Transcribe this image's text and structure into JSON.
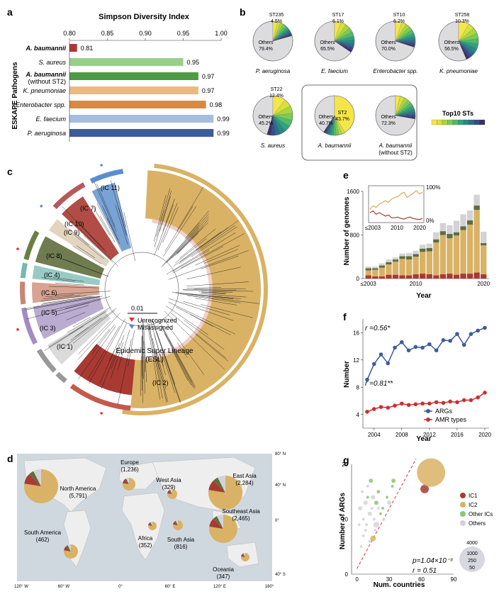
{
  "colors": {
    "ic2": "#d9b266",
    "ic1": "#a83a32",
    "ic_other": "#8fc477",
    "others": "#d3d3d7",
    "args": "#3e5b9b",
    "amr": "#c8312e",
    "ocean": "#cfd8df",
    "land": "#eeeeee"
  },
  "panels": {
    "a": "a",
    "b": "b",
    "c": "c",
    "d": "d",
    "e": "e",
    "f": "f",
    "g": "g"
  },
  "panel_a": {
    "title": "Simpson Diversity Index",
    "ylabel": "ESKAPE Pathogens",
    "ticks": [
      "0.80",
      "0.85",
      "0.90",
      "0.95",
      "1.00"
    ],
    "bars": [
      {
        "name": "A. baumannii",
        "sub": "",
        "value": 0.81,
        "label": "0.81",
        "color": "#a83a32",
        "bold": true
      },
      {
        "name": "S. aureus",
        "sub": "",
        "value": 0.95,
        "label": "0.95",
        "color": "#98cf8a",
        "bold": false
      },
      {
        "name": "A. baumannii",
        "sub": "(without ST2)",
        "value": 0.97,
        "label": "0.97",
        "color": "#4f9a45",
        "bold": true
      },
      {
        "name": "K. pneumoniae",
        "sub": "",
        "value": 0.97,
        "label": "0.97",
        "color": "#ebba84",
        "bold": false
      },
      {
        "name": "Enterobacter spp.",
        "sub": "",
        "value": 0.98,
        "label": "0.98",
        "color": "#d78a43",
        "bold": false
      },
      {
        "name": "E. faecium",
        "sub": "",
        "value": 0.99,
        "label": "0.99",
        "color": "#a6bde0",
        "bold": false
      },
      {
        "name": "P. aeruginosa",
        "sub": "",
        "value": 0.99,
        "label": "0.99",
        "color": "#3e5b9b",
        "bold": false
      }
    ]
  },
  "panel_b": {
    "legend_title": "Top10 STs",
    "pies": [
      {
        "name": "P. aeruginosa",
        "name2": "",
        "st": "ST235",
        "st_pct": "4.5%",
        "others": "Others",
        "others_pct": "79.4%"
      },
      {
        "name": "E. faecium",
        "name2": "",
        "st": "ST17",
        "st_pct": "6.1%",
        "others": "Others",
        "others_pct": "65.5%"
      },
      {
        "name": "Enterobacter spp.",
        "name2": "",
        "st": "ST10",
        "st_pct": "6.2%",
        "others": "Others",
        "others_pct": "70.0%"
      },
      {
        "name": "K. pneumoniae",
        "name2": "",
        "st": "ST258",
        "st_pct": "10.3%",
        "others": "Others",
        "others_pct": "56.5%"
      },
      {
        "name": "S. aureus",
        "name2": "",
        "st": "ST22",
        "st_pct": "12.4%",
        "others": "Others",
        "others_pct": "45.2%"
      },
      {
        "name": "A. baumannii",
        "name2": "",
        "st": "ST2",
        "st_pct": "43.7%",
        "others": "Others",
        "others_pct": "40.7%"
      },
      {
        "name": "A. baumannii",
        "name2": "(without ST2)",
        "st": "",
        "st_pct": "",
        "others": "Others",
        "others_pct": "72.3%"
      }
    ]
  },
  "panel_c": {
    "scale": "0.01",
    "legend": [
      "Unrecognized",
      "Misassigned"
    ],
    "labels": [
      "(IC 11)",
      "(IC 7)",
      "(IC 10)",
      "(IC 9)",
      "(IC 8)",
      "(IC 4)",
      "(IC 6)",
      "(IC 5)",
      "(IC 3)",
      "(IC 1)",
      "(IC 2)"
    ],
    "esl": "Epidemic Super Lineage",
    "esl2": "(ESL)"
  },
  "panel_d": {
    "lat": [
      "80° N",
      "40° N",
      "0°",
      "40° S"
    ],
    "lon": [
      "120° W",
      "60° W",
      "0°",
      "60° E",
      "120° E",
      "180°"
    ],
    "regions": [
      {
        "name": "North America",
        "count": "(5,791)"
      },
      {
        "name": "Europe",
        "count": "(1,236)"
      },
      {
        "name": "West Asia",
        "count": "(329)"
      },
      {
        "name": "East Asia",
        "count": "(2,284)"
      },
      {
        "name": "South America",
        "count": "(462)"
      },
      {
        "name": "Africa",
        "count": "(352)"
      },
      {
        "name": "South Asia",
        "count": "(816)"
      },
      {
        "name": "Southeast Asia",
        "count": "(2,465)"
      },
      {
        "name": "Oceania",
        "count": "(347)"
      }
    ]
  },
  "panel_e": {
    "ylabel": "Number of genomes",
    "xlabel": "Year",
    "yticks": [
      "0",
      "800",
      "1600"
    ],
    "xticks": [
      "≤2003",
      "2010",
      "2020"
    ],
    "inset_yticks": [
      "100%",
      "0%"
    ],
    "inset_xticks": [
      "≤2003",
      "2010",
      "2020"
    ]
  },
  "panel_f": {
    "ylabel": "Number",
    "xlabel": "Year",
    "yticks": [
      "4",
      "8",
      "12",
      "16"
    ],
    "xticks": [
      "2004",
      "2008",
      "2012",
      "2016",
      "2020"
    ],
    "r1": "r =0.56*",
    "r2": "r =0.81**",
    "legend": [
      "ARGs",
      "AMR types"
    ]
  },
  "panel_g": {
    "ylabel": "Number of ARGs",
    "xlabel": "Num. countries",
    "yticks": [
      "0",
      "10",
      "20"
    ],
    "xticks": [
      "0",
      "30",
      "60",
      "90"
    ],
    "legend": [
      "IC1",
      "IC2",
      "Other ICs",
      "Others"
    ],
    "size_legend": [
      "4000",
      "1000",
      "250",
      "50"
    ],
    "p": "p=1.04×10⁻³",
    "r": "r = 0.51"
  },
  "chart_data": [
    {
      "type": "bar",
      "title": "Simpson Diversity Index",
      "ylabel": "ESKAPE Pathogens",
      "categories": [
        "A. baumannii",
        "S. aureus",
        "A. baumannii (without ST2)",
        "K. pneumoniae",
        "Enterobacter spp.",
        "E. faecium",
        "P. aeruginosa"
      ],
      "values": [
        0.81,
        0.95,
        0.97,
        0.97,
        0.98,
        0.99,
        0.99
      ],
      "xlim": [
        0.8,
        1.0
      ],
      "orientation": "horizontal"
    },
    {
      "type": "bar",
      "xlabel": "Year",
      "ylabel": "Number of genomes",
      "categories": [
        "≤2003",
        "2004",
        "2005",
        "2006",
        "2007",
        "2008",
        "2009",
        "2010",
        "2011",
        "2012",
        "2013",
        "2014",
        "2015",
        "2016",
        "2017",
        "2018",
        "2019",
        "2020"
      ],
      "series": [
        {
          "values": [
            60,
            40,
            40,
            70,
            70,
            60,
            60,
            80,
            90,
            80,
            60,
            80,
            90,
            70,
            90,
            90,
            110,
            80
          ]
        },
        {
          "values": [
            90,
            120,
            160,
            190,
            240,
            300,
            290,
            320,
            400,
            420,
            600,
            720,
            650,
            720,
            800,
            900,
            1150,
            530
          ]
        },
        {
          "values": [
            40,
            30,
            40,
            40,
            40,
            50,
            60,
            50,
            60,
            60,
            60,
            70,
            80,
            60,
            70,
            80,
            80,
            40
          ]
        },
        {
          "values": [
            30,
            30,
            40,
            50,
            40,
            50,
            60,
            60,
            70,
            80,
            130,
            150,
            160,
            210,
            220,
            180,
            200,
            210
          ]
        }
      ],
      "ylim": [
        0,
        1600
      ]
    },
    {
      "type": "line",
      "xlabel": "Year",
      "ylabel": "Number",
      "x": [
        2003,
        2004,
        2005,
        2006,
        2007,
        2008,
        2009,
        2010,
        2011,
        2012,
        2013,
        2014,
        2015,
        2016,
        2017,
        2018,
        2019,
        2020
      ],
      "series": [
        {
          "name": "ARGs",
          "values": [
            9.1,
            11.4,
            12.8,
            11.5,
            13.8,
            14.6,
            13.4,
            13.9,
            13.8,
            14.3,
            13.4,
            14.9,
            14.8,
            15.8,
            14.2,
            15.8,
            16.3,
            16.7
          ]
        },
        {
          "name": "AMR types",
          "values": [
            4.4,
            4.8,
            5.1,
            5.0,
            5.3,
            5.6,
            5.4,
            5.5,
            5.6,
            5.6,
            5.8,
            5.7,
            5.9,
            5.8,
            6.1,
            6.1,
            6.5,
            7.2
          ]
        }
      ],
      "ylim": [
        2,
        18
      ]
    },
    {
      "type": "scatter",
      "xlabel": "Num. countries",
      "ylabel": "Number of ARGs",
      "series": [
        {
          "name": "IC1",
          "points": [
            [
              63,
              15.5
            ]
          ]
        },
        {
          "name": "IC2",
          "points": [
            [
              69,
              18.5
            ],
            [
              15,
              6.5
            ]
          ]
        },
        {
          "name": "Other ICs",
          "points": [
            [
              13,
              17
            ],
            [
              20,
              15
            ],
            [
              28,
              14
            ],
            [
              33,
              16
            ],
            [
              18,
              13
            ],
            [
              10,
              14
            ],
            [
              24,
              12
            ],
            [
              34,
              17
            ],
            [
              22,
              11
            ]
          ]
        },
        {
          "name": "Others",
          "points": [
            [
              3,
              12
            ],
            [
              5,
              15
            ],
            [
              6,
              10
            ],
            [
              8,
              13
            ],
            [
              9,
              9
            ],
            [
              10,
              16
            ],
            [
              12,
              11
            ],
            [
              14,
              12
            ],
            [
              16,
              10
            ],
            [
              18,
              9
            ],
            [
              20,
              12
            ],
            [
              25,
              10
            ],
            [
              30,
              13
            ],
            [
              6,
              7
            ],
            [
              4,
              5
            ],
            [
              8,
              8
            ],
            [
              12,
              6
            ],
            [
              2,
              9
            ],
            [
              15,
              14
            ],
            [
              17,
              8
            ]
          ]
        }
      ],
      "xlim": [
        -5,
        90
      ],
      "ylim": [
        0,
        20
      ]
    }
  ]
}
